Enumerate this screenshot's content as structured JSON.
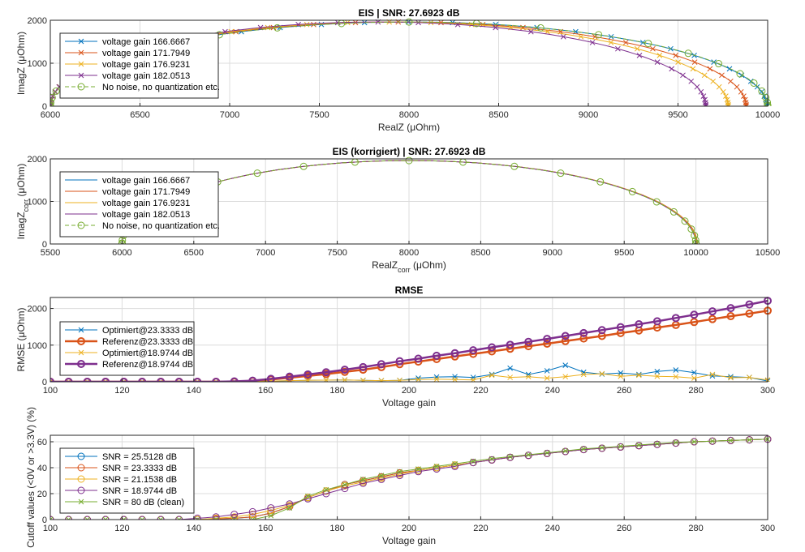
{
  "chart_data": [
    {
      "type": "line",
      "title": "EIS | SNR: 27.6923 dB",
      "xlabel": "RealZ (μOhm)",
      "ylabel": "ImagZ (μOhm)",
      "xlim": [
        6000,
        10000
      ],
      "ylim": [
        0,
        2000
      ],
      "xticks": [
        6000,
        6500,
        7000,
        7500,
        8000,
        8500,
        9000,
        9500,
        10000
      ],
      "yticks": [
        0,
        1000,
        2000
      ],
      "grid": true,
      "legend_position": "top-left",
      "series": [
        {
          "name": "voltage gain 166.6667",
          "color": "#0072BD",
          "marker": "x",
          "R": 9995
        },
        {
          "name": "voltage gain 171.7949",
          "color": "#D95319",
          "marker": "x",
          "R": 9880
        },
        {
          "name": "voltage gain 176.9231",
          "color": "#EDB120",
          "marker": "x",
          "R": 9780
        },
        {
          "name": "voltage gain 182.0513",
          "color": "#7E2F8E",
          "marker": "x",
          "R": 9655
        },
        {
          "name": "No noise, no quantization etc.",
          "color": "#77AC30",
          "marker": "o",
          "R": 10000,
          "dashed": true
        }
      ]
    },
    {
      "type": "line",
      "title": "EIS (korrigiert) | SNR: 27.6923 dB",
      "xlabel": "RealZ",
      "xlabel_sub": "corr",
      "xlabel_unit": " (μOhm)",
      "ylabel": "ImagZ",
      "ylabel_sub": "corr",
      "ylabel_unit": " (μOhm)",
      "xlim": [
        5500,
        10500
      ],
      "ylim": [
        0,
        2000
      ],
      "xticks": [
        5500,
        6000,
        6500,
        7000,
        7500,
        8000,
        8500,
        9000,
        9500,
        10000,
        10500
      ],
      "yticks": [
        0,
        1000,
        2000
      ],
      "grid": true,
      "legend_position": "top-left",
      "series": [
        {
          "name": "voltage gain 166.6667",
          "color": "#0072BD",
          "marker": "none",
          "R": 10000
        },
        {
          "name": "voltage gain 171.7949",
          "color": "#D95319",
          "marker": "none",
          "R": 10010
        },
        {
          "name": "voltage gain 176.9231",
          "color": "#EDB120",
          "marker": "none",
          "R": 10005
        },
        {
          "name": "voltage gain 182.0513",
          "color": "#7E2F8E",
          "marker": "none",
          "R": 10000
        },
        {
          "name": "No noise, no quantization etc.",
          "color": "#77AC30",
          "marker": "o",
          "R": 10000,
          "dashed": true
        }
      ]
    },
    {
      "type": "line",
      "title": "RMSE",
      "xlabel": "Voltage gain",
      "ylabel": "RMSE (μOhm)",
      "xlim": [
        100,
        300
      ],
      "ylim": [
        0,
        2300
      ],
      "xticks": [
        100,
        120,
        140,
        160,
        180,
        200,
        220,
        240,
        260,
        280,
        300
      ],
      "yticks": [
        0,
        1000,
        2000
      ],
      "grid": true,
      "legend_position": "bottom-left",
      "x": [
        100,
        105.1,
        110.3,
        115.4,
        120.5,
        125.6,
        130.8,
        135.9,
        141.0,
        146.2,
        151.3,
        156.4,
        161.5,
        166.7,
        171.8,
        176.9,
        182.1,
        187.2,
        192.3,
        197.4,
        202.6,
        207.7,
        212.8,
        217.9,
        223.1,
        228.2,
        233.3,
        238.5,
        243.6,
        248.7,
        253.8,
        259.0,
        264.1,
        269.2,
        274.4,
        279.5,
        284.6,
        289.7,
        294.9,
        300.0
      ],
      "series": [
        {
          "name": "Optimiert@23.3333 dB",
          "color": "#0072BD",
          "marker": "x",
          "width": 1,
          "values": [
            0,
            0,
            0,
            0,
            0,
            0,
            0,
            0,
            0,
            0,
            0,
            5,
            20,
            30,
            40,
            45,
            50,
            40,
            30,
            40,
            100,
            130,
            140,
            120,
            200,
            370,
            200,
            300,
            450,
            260,
            210,
            240,
            200,
            280,
            320,
            250,
            160,
            140,
            120,
            20
          ]
        },
        {
          "name": "Referenz@23.3333 dB",
          "color": "#D95319",
          "marker": "o",
          "width": 2.5,
          "values": [
            0,
            0,
            0,
            0,
            0,
            0,
            0,
            0,
            0,
            0,
            0,
            20,
            60,
            110,
            160,
            210,
            270,
            330,
            400,
            480,
            550,
            620,
            690,
            760,
            830,
            900,
            970,
            1040,
            1110,
            1180,
            1250,
            1330,
            1400,
            1480,
            1550,
            1630,
            1710,
            1790,
            1860,
            1940
          ]
        },
        {
          "name": "Optimiert@18.9744 dB",
          "color": "#EDB120",
          "marker": "x",
          "width": 1,
          "values": [
            0,
            0,
            0,
            0,
            0,
            0,
            0,
            0,
            0,
            0,
            0,
            5,
            20,
            30,
            40,
            45,
            50,
            40,
            30,
            40,
            60,
            70,
            60,
            50,
            180,
            120,
            140,
            100,
            140,
            200,
            220,
            150,
            180,
            150,
            140,
            100,
            200,
            110,
            120,
            50
          ]
        },
        {
          "name": "Referenz@18.9744 dB",
          "color": "#7E2F8E",
          "marker": "o",
          "width": 2.5,
          "values": [
            0,
            0,
            0,
            0,
            0,
            0,
            0,
            0,
            0,
            0,
            10,
            30,
            80,
            140,
            200,
            260,
            330,
            400,
            480,
            560,
            630,
            710,
            780,
            860,
            940,
            1010,
            1090,
            1170,
            1250,
            1330,
            1410,
            1490,
            1570,
            1650,
            1740,
            1830,
            1920,
            2010,
            2110,
            2210
          ]
        }
      ]
    },
    {
      "type": "line",
      "title": "",
      "xlabel": "Voltage gain",
      "ylabel": "Cutoff values (<0V or >3.3V) (%)",
      "xlim": [
        100,
        300
      ],
      "ylim": [
        0,
        65
      ],
      "xticks": [
        100,
        120,
        140,
        160,
        180,
        200,
        220,
        240,
        260,
        280,
        300
      ],
      "yticks": [
        0,
        20,
        40,
        60
      ],
      "grid": true,
      "legend_position": "bottom-left",
      "x": [
        100,
        105.1,
        110.3,
        115.4,
        120.5,
        125.6,
        130.8,
        135.9,
        141.0,
        146.2,
        151.3,
        156.4,
        161.5,
        166.7,
        171.8,
        176.9,
        182.1,
        187.2,
        192.3,
        197.4,
        202.6,
        207.7,
        212.8,
        217.9,
        223.1,
        228.2,
        233.3,
        238.5,
        243.6,
        248.7,
        253.8,
        259.0,
        264.1,
        269.2,
        274.4,
        279.5,
        284.6,
        289.7,
        294.9,
        300.0
      ],
      "series": [
        {
          "name": "SNR = 25.5128 dB",
          "color": "#0072BD",
          "marker": "o",
          "values": [
            0,
            0,
            0,
            0,
            0,
            0,
            0,
            0,
            0,
            0.5,
            1,
            2,
            5,
            10,
            17,
            22,
            27,
            30,
            33,
            36,
            38,
            40,
            42,
            44,
            46,
            48,
            49.5,
            51,
            52.5,
            54,
            55,
            56,
            57,
            58,
            59,
            60,
            60.5,
            61,
            61.5,
            62
          ]
        },
        {
          "name": "SNR = 23.3333 dB",
          "color": "#D95319",
          "marker": "o",
          "values": [
            0,
            0,
            0,
            0,
            0,
            0,
            0,
            0,
            0,
            0.5,
            1,
            2,
            5,
            10,
            17,
            22,
            27,
            30,
            33,
            36,
            38,
            40,
            42,
            44,
            46,
            48,
            49.5,
            51,
            52.5,
            54,
            55,
            56,
            57,
            58,
            59,
            60,
            60.5,
            61,
            61.5,
            62
          ]
        },
        {
          "name": "SNR = 21.1538 dB",
          "color": "#EDB120",
          "marker": "o",
          "values": [
            0,
            0,
            0,
            0,
            0,
            0,
            0,
            0,
            0,
            1,
            2,
            4,
            7,
            11,
            17,
            22,
            26,
            29,
            32,
            35,
            38,
            40,
            42,
            44,
            46,
            48,
            49.5,
            51,
            52.5,
            54,
            55,
            56,
            57,
            58,
            59,
            60,
            60.5,
            61,
            61.5,
            62
          ]
        },
        {
          "name": "SNR = 18.9744 dB",
          "color": "#7E2F8E",
          "marker": "o",
          "values": [
            0,
            0,
            0,
            0,
            0,
            0,
            0,
            0,
            1,
            2,
            4,
            6,
            9,
            12,
            16,
            20,
            24,
            28,
            31,
            34,
            37,
            39,
            41,
            44,
            46,
            48,
            49.5,
            51,
            52.5,
            54,
            55,
            56,
            57,
            58,
            59,
            60,
            60.5,
            61,
            61.5,
            62
          ]
        },
        {
          "name": "SNR = 80 dB (clean)",
          "color": "#77AC30",
          "marker": "x",
          "values": [
            0,
            0,
            0,
            0,
            0,
            0,
            0,
            0,
            0,
            0,
            0,
            0,
            3,
            9,
            18,
            23,
            27,
            31,
            34,
            37,
            39,
            41,
            43,
            45,
            47,
            48.5,
            50,
            51.5,
            53,
            54.5,
            55.5,
            56.5,
            57.5,
            58.5,
            59.5,
            60,
            60.5,
            61,
            61.5,
            62
          ]
        }
      ]
    }
  ]
}
